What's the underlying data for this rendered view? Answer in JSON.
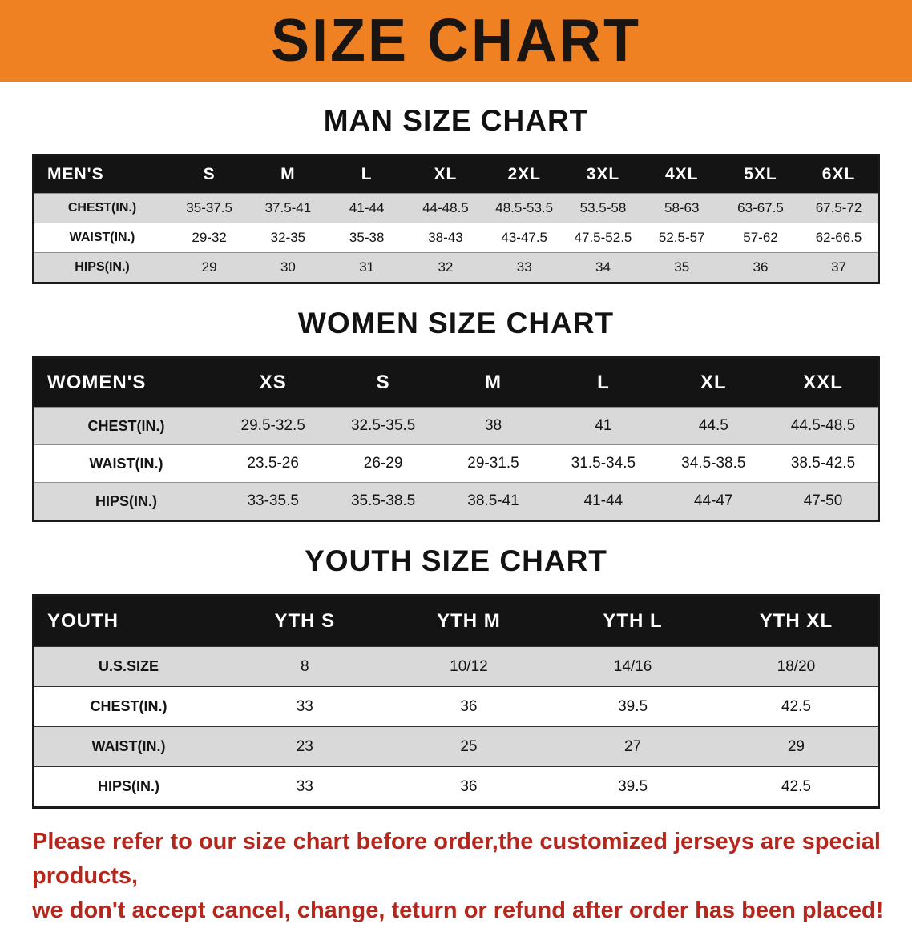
{
  "banner": {
    "title": "SIZE CHART",
    "bg_color": "#F08123",
    "text_color": "#181512"
  },
  "colors": {
    "table_header_bg": "#141414",
    "row_stripe_gray": "#d9d9d9",
    "footer_red": "#b5271c"
  },
  "sections": [
    {
      "heading": "MAN SIZE CHART",
      "table": {
        "header": [
          "MEN'S",
          "S",
          "M",
          "L",
          "XL",
          "2XL",
          "3XL",
          "4XL",
          "5XL",
          "6XL"
        ],
        "rows": [
          [
            "CHEST(IN.)",
            "35-37.5",
            "37.5-41",
            "41-44",
            "44-48.5",
            "48.5-53.5",
            "53.5-58",
            "58-63",
            "63-67.5",
            "67.5-72"
          ],
          [
            "WAIST(IN.)",
            "29-32",
            "32-35",
            "35-38",
            "38-43",
            "43-47.5",
            "47.5-52.5",
            "52.5-57",
            "57-62",
            "62-66.5"
          ],
          [
            "HIPS(IN.)",
            "29",
            "30",
            "31",
            "32",
            "33",
            "34",
            "35",
            "36",
            "37"
          ]
        ]
      }
    },
    {
      "heading": "WOMEN SIZE CHART",
      "table": {
        "header": [
          "WOMEN'S",
          "XS",
          "S",
          "M",
          "L",
          "XL",
          "XXL"
        ],
        "rows": [
          [
            "CHEST(IN.)",
            "29.5-32.5",
            "32.5-35.5",
            "38",
            "41",
            "44.5",
            "44.5-48.5"
          ],
          [
            "WAIST(IN.)",
            "23.5-26",
            "26-29",
            "29-31.5",
            "31.5-34.5",
            "34.5-38.5",
            "38.5-42.5"
          ],
          [
            "HIPS(IN.)",
            "33-35.5",
            "35.5-38.5",
            "38.5-41",
            "41-44",
            "44-47",
            "47-50"
          ]
        ]
      }
    },
    {
      "heading": "YOUTH SIZE CHART",
      "table": {
        "header": [
          "YOUTH",
          "YTH S",
          "YTH M",
          "YTH L",
          "YTH XL"
        ],
        "rows": [
          [
            "U.S.SIZE",
            "8",
            "10/12",
            "14/16",
            "18/20"
          ],
          [
            "CHEST(IN.)",
            "33",
            "36",
            "39.5",
            "42.5"
          ],
          [
            "WAIST(IN.)",
            "23",
            "25",
            "27",
            "29"
          ],
          [
            "HIPS(IN.)",
            "33",
            "36",
            "39.5",
            "42.5"
          ]
        ]
      }
    }
  ],
  "footer": {
    "line1": "Please refer to our size chart before order,the customized jerseys are special products,",
    "line2": "we don't accept cancel, change, teturn or refund after order has been placed!"
  }
}
